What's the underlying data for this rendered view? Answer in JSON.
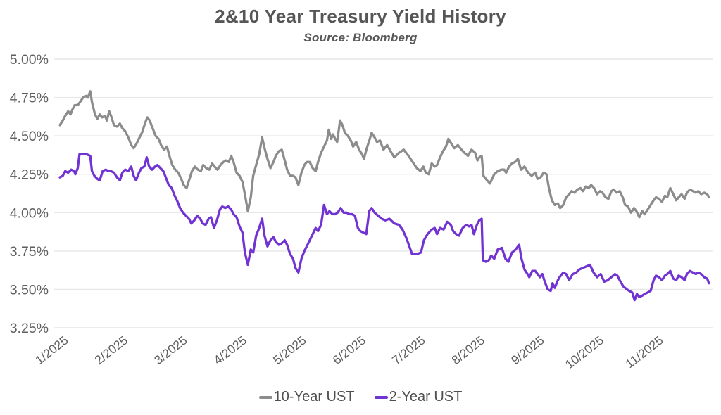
{
  "chart_data": {
    "type": "line",
    "title": "2&10 Year Treasury Yield History",
    "subtitle": "Source: Bloomberg",
    "xlabel": "",
    "ylabel": "",
    "grid": "horizontal",
    "legend_position": "bottom-center",
    "ylim": [
      3.25,
      5.0
    ],
    "xlim": [
      1.0,
      11.95
    ],
    "y_ticks": [
      {
        "value": 5.0,
        "label": "5.00%"
      },
      {
        "value": 4.75,
        "label": "4.75%"
      },
      {
        "value": 4.5,
        "label": "4.50%"
      },
      {
        "value": 4.25,
        "label": "4.25%"
      },
      {
        "value": 4.0,
        "label": "4.00%"
      },
      {
        "value": 3.75,
        "label": "3.75%"
      },
      {
        "value": 3.5,
        "label": "3.50%"
      },
      {
        "value": 3.25,
        "label": "3.25%"
      }
    ],
    "x_ticks": [
      {
        "value": 1,
        "label": "1/2025"
      },
      {
        "value": 2,
        "label": "2/2025"
      },
      {
        "value": 3,
        "label": "3/2025"
      },
      {
        "value": 4,
        "label": "4/2025"
      },
      {
        "value": 5,
        "label": "5/2025"
      },
      {
        "value": 6,
        "label": "6/2025"
      },
      {
        "value": 7,
        "label": "7/2025"
      },
      {
        "value": 8,
        "label": "8/2025"
      },
      {
        "value": 9,
        "label": "9/2025"
      },
      {
        "value": 10,
        "label": "10/2025"
      },
      {
        "value": 11,
        "label": "11/2025"
      }
    ],
    "series": [
      {
        "name": "10-Year UST",
        "color": "#8c8c8c",
        "x": [
          1.0,
          1.05,
          1.09,
          1.14,
          1.18,
          1.21,
          1.25,
          1.3,
          1.34,
          1.39,
          1.44,
          1.47,
          1.51,
          1.54,
          1.59,
          1.63,
          1.67,
          1.71,
          1.76,
          1.79,
          1.83,
          1.86,
          1.91,
          1.96,
          2.01,
          2.05,
          2.1,
          2.15,
          2.2,
          2.24,
          2.29,
          2.34,
          2.38,
          2.43,
          2.47,
          2.51,
          2.56,
          2.61,
          2.66,
          2.7,
          2.75,
          2.8,
          2.85,
          2.89,
          2.94,
          2.99,
          3.04,
          3.08,
          3.13,
          3.18,
          3.22,
          3.27,
          3.32,
          3.37,
          3.41,
          3.46,
          3.51,
          3.56,
          3.6,
          3.65,
          3.7,
          3.75,
          3.79,
          3.84,
          3.88,
          3.92,
          3.97,
          4.02,
          4.07,
          4.11,
          4.16,
          4.21,
          4.25,
          4.3,
          4.35,
          4.4,
          4.44,
          4.49,
          4.54,
          4.59,
          4.63,
          4.68,
          4.73,
          4.78,
          4.82,
          4.87,
          4.92,
          4.96,
          5.01,
          5.06,
          5.11,
          5.15,
          5.2,
          5.25,
          5.3,
          5.34,
          5.39,
          5.44,
          5.49,
          5.52,
          5.56,
          5.59,
          5.63,
          5.66,
          5.71,
          5.75,
          5.79,
          5.84,
          5.89,
          5.93,
          5.98,
          6.03,
          6.08,
          6.11,
          6.16,
          6.21,
          6.24,
          6.29,
          6.33,
          6.38,
          6.44,
          6.5,
          6.56,
          6.62,
          6.7,
          6.78,
          6.86,
          6.93,
          7.0,
          7.06,
          7.11,
          7.15,
          7.2,
          7.25,
          7.3,
          7.34,
          7.39,
          7.44,
          7.49,
          7.53,
          7.58,
          7.63,
          7.69,
          7.75,
          7.8,
          7.86,
          7.92,
          7.98,
          8.02,
          8.05,
          8.09,
          8.12,
          8.18,
          8.23,
          8.3,
          8.36,
          8.42,
          8.47,
          8.5,
          8.55,
          8.6,
          8.65,
          8.7,
          8.75,
          8.81,
          8.87,
          8.93,
          8.99,
          9.03,
          9.08,
          9.13,
          9.18,
          9.22,
          9.27,
          9.32,
          9.37,
          9.41,
          9.46,
          9.51,
          9.56,
          9.6,
          9.65,
          9.7,
          9.75,
          9.79,
          9.84,
          9.89,
          9.93,
          9.98,
          10.03,
          10.08,
          10.12,
          10.17,
          10.22,
          10.27,
          10.31,
          10.36,
          10.41,
          10.46,
          10.5,
          10.55,
          10.6,
          10.65,
          10.69,
          10.74,
          10.79,
          10.83,
          10.88,
          10.93,
          10.98,
          11.02,
          11.07,
          11.12,
          11.17,
          11.21,
          11.26,
          11.31,
          11.36,
          11.4,
          11.45,
          11.5,
          11.54,
          11.59,
          11.64,
          11.69,
          11.73,
          11.78,
          11.83,
          11.88,
          11.91
        ],
        "y": [
          4.57,
          4.6,
          4.63,
          4.66,
          4.64,
          4.67,
          4.7,
          4.7,
          4.72,
          4.75,
          4.76,
          4.75,
          4.79,
          4.72,
          4.64,
          4.61,
          4.64,
          4.62,
          4.63,
          4.6,
          4.66,
          4.63,
          4.57,
          4.56,
          4.58,
          4.55,
          4.53,
          4.49,
          4.44,
          4.42,
          4.45,
          4.49,
          4.52,
          4.58,
          4.62,
          4.6,
          4.55,
          4.5,
          4.48,
          4.44,
          4.41,
          4.43,
          4.36,
          4.31,
          4.28,
          4.26,
          4.22,
          4.18,
          4.16,
          4.22,
          4.27,
          4.3,
          4.28,
          4.27,
          4.31,
          4.29,
          4.28,
          4.32,
          4.3,
          4.28,
          4.31,
          4.33,
          4.34,
          4.33,
          4.37,
          4.33,
          4.26,
          4.24,
          4.2,
          4.12,
          4.01,
          4.1,
          4.24,
          4.31,
          4.38,
          4.49,
          4.42,
          4.35,
          4.29,
          4.33,
          4.37,
          4.4,
          4.41,
          4.34,
          4.28,
          4.24,
          4.24,
          4.23,
          4.18,
          4.26,
          4.31,
          4.33,
          4.33,
          4.29,
          4.27,
          4.33,
          4.39,
          4.43,
          4.47,
          4.54,
          4.48,
          4.51,
          4.48,
          4.46,
          4.6,
          4.57,
          4.52,
          4.5,
          4.47,
          4.43,
          4.46,
          4.41,
          4.38,
          4.35,
          4.42,
          4.48,
          4.52,
          4.49,
          4.46,
          4.47,
          4.41,
          4.44,
          4.4,
          4.36,
          4.39,
          4.41,
          4.37,
          4.33,
          4.29,
          4.27,
          4.3,
          4.26,
          4.25,
          4.32,
          4.3,
          4.31,
          4.36,
          4.4,
          4.43,
          4.48,
          4.45,
          4.42,
          4.44,
          4.41,
          4.39,
          4.37,
          4.41,
          4.39,
          4.34,
          4.36,
          4.37,
          4.24,
          4.21,
          4.19,
          4.25,
          4.27,
          4.28,
          4.28,
          4.26,
          4.3,
          4.32,
          4.33,
          4.35,
          4.28,
          4.3,
          4.26,
          4.24,
          4.26,
          4.22,
          4.23,
          4.26,
          4.25,
          4.16,
          4.08,
          4.05,
          4.06,
          4.03,
          4.05,
          4.1,
          4.12,
          4.14,
          4.13,
          4.15,
          4.16,
          4.14,
          4.17,
          4.16,
          4.18,
          4.16,
          4.12,
          4.14,
          4.13,
          4.1,
          4.09,
          4.14,
          4.15,
          4.13,
          4.14,
          4.1,
          4.05,
          4.04,
          4.0,
          4.03,
          4.01,
          3.97,
          4.01,
          3.99,
          4.02,
          4.05,
          4.08,
          4.1,
          4.09,
          4.07,
          4.11,
          4.1,
          4.16,
          4.12,
          4.08,
          4.1,
          4.12,
          4.09,
          4.13,
          4.15,
          4.14,
          4.13,
          4.14,
          4.12,
          4.13,
          4.12,
          4.1
        ]
      },
      {
        "name": "2-Year UST",
        "color": "#7134d2",
        "x": [
          1.0,
          1.05,
          1.09,
          1.14,
          1.19,
          1.24,
          1.26,
          1.3,
          1.33,
          1.39,
          1.45,
          1.51,
          1.54,
          1.58,
          1.63,
          1.67,
          1.72,
          1.77,
          1.82,
          1.86,
          1.91,
          1.96,
          2.01,
          2.05,
          2.1,
          2.15,
          2.2,
          2.24,
          2.28,
          2.33,
          2.37,
          2.42,
          2.46,
          2.5,
          2.55,
          2.6,
          2.64,
          2.69,
          2.74,
          2.79,
          2.83,
          2.88,
          2.93,
          2.98,
          3.02,
          3.07,
          3.12,
          3.17,
          3.21,
          3.26,
          3.31,
          3.36,
          3.4,
          3.45,
          3.5,
          3.54,
          3.59,
          3.64,
          3.69,
          3.73,
          3.78,
          3.83,
          3.88,
          3.92,
          3.97,
          4.02,
          4.07,
          4.11,
          4.16,
          4.21,
          4.25,
          4.3,
          4.35,
          4.4,
          4.44,
          4.49,
          4.54,
          4.59,
          4.63,
          4.68,
          4.73,
          4.78,
          4.82,
          4.87,
          4.92,
          4.96,
          5.01,
          5.06,
          5.11,
          5.15,
          5.2,
          5.25,
          5.3,
          5.34,
          5.39,
          5.44,
          5.49,
          5.53,
          5.58,
          5.63,
          5.67,
          5.72,
          5.77,
          5.82,
          5.86,
          5.91,
          5.96,
          6.01,
          6.05,
          6.1,
          6.15,
          6.2,
          6.24,
          6.29,
          6.35,
          6.41,
          6.47,
          6.54,
          6.62,
          6.7,
          6.76,
          6.83,
          6.92,
          7.0,
          7.07,
          7.12,
          7.18,
          7.25,
          7.3,
          7.34,
          7.39,
          7.45,
          7.51,
          7.57,
          7.61,
          7.66,
          7.71,
          7.77,
          7.83,
          7.88,
          7.92,
          7.96,
          8.01,
          8.05,
          8.09,
          8.11,
          8.16,
          8.21,
          8.25,
          8.3,
          8.36,
          8.43,
          8.49,
          8.54,
          8.6,
          8.66,
          8.72,
          8.76,
          8.81,
          8.86,
          8.89,
          8.94,
          8.99,
          9.03,
          9.07,
          9.11,
          9.15,
          9.2,
          9.25,
          9.28,
          9.32,
          9.37,
          9.4,
          9.46,
          9.51,
          9.56,
          9.62,
          9.68,
          9.73,
          9.79,
          9.85,
          9.91,
          9.97,
          10.03,
          10.09,
          10.15,
          10.21,
          10.27,
          10.33,
          10.37,
          10.41,
          10.47,
          10.53,
          10.57,
          10.62,
          10.66,
          10.7,
          10.74,
          10.79,
          10.83,
          10.88,
          10.93,
          10.98,
          11.02,
          11.07,
          11.12,
          11.17,
          11.21,
          11.26,
          11.31,
          11.36,
          11.4,
          11.45,
          11.5,
          11.54,
          11.59,
          11.64,
          11.69,
          11.73,
          11.78,
          11.83,
          11.88,
          11.91
        ],
        "y": [
          4.23,
          4.24,
          4.27,
          4.26,
          4.28,
          4.27,
          4.25,
          4.29,
          4.38,
          4.38,
          4.38,
          4.37,
          4.27,
          4.24,
          4.22,
          4.21,
          4.27,
          4.28,
          4.27,
          4.27,
          4.26,
          4.23,
          4.21,
          4.26,
          4.28,
          4.27,
          4.3,
          4.24,
          4.21,
          4.26,
          4.29,
          4.3,
          4.36,
          4.3,
          4.28,
          4.3,
          4.31,
          4.29,
          4.27,
          4.22,
          4.18,
          4.16,
          4.11,
          4.07,
          4.03,
          4.0,
          3.98,
          3.96,
          3.93,
          3.95,
          3.98,
          3.96,
          3.93,
          3.92,
          3.96,
          3.97,
          3.9,
          3.95,
          4.02,
          4.04,
          4.03,
          4.04,
          4.02,
          3.99,
          3.97,
          3.91,
          3.87,
          3.74,
          3.66,
          3.76,
          3.74,
          3.85,
          3.9,
          3.96,
          3.85,
          3.78,
          3.82,
          3.84,
          3.81,
          3.79,
          3.8,
          3.82,
          3.79,
          3.73,
          3.7,
          3.64,
          3.61,
          3.7,
          3.75,
          3.78,
          3.82,
          3.86,
          3.9,
          3.88,
          3.92,
          4.05,
          3.99,
          4.01,
          3.99,
          3.99,
          4.0,
          4.03,
          4.0,
          4.0,
          3.99,
          3.99,
          3.98,
          3.9,
          3.88,
          3.87,
          3.86,
          4.01,
          4.03,
          4.0,
          3.98,
          3.96,
          3.95,
          3.96,
          3.93,
          3.92,
          3.89,
          3.83,
          3.73,
          3.73,
          3.74,
          3.82,
          3.86,
          3.89,
          3.9,
          3.86,
          3.9,
          3.89,
          3.94,
          3.92,
          3.88,
          3.86,
          3.85,
          3.9,
          3.92,
          3.91,
          3.92,
          3.86,
          3.92,
          3.95,
          3.96,
          3.69,
          3.68,
          3.69,
          3.72,
          3.7,
          3.76,
          3.77,
          3.7,
          3.68,
          3.74,
          3.76,
          3.79,
          3.7,
          3.63,
          3.6,
          3.58,
          3.62,
          3.62,
          3.6,
          3.58,
          3.6,
          3.55,
          3.5,
          3.49,
          3.54,
          3.51,
          3.56,
          3.58,
          3.61,
          3.6,
          3.56,
          3.6,
          3.61,
          3.63,
          3.64,
          3.65,
          3.66,
          3.61,
          3.58,
          3.6,
          3.55,
          3.56,
          3.58,
          3.6,
          3.59,
          3.56,
          3.52,
          3.5,
          3.49,
          3.48,
          3.43,
          3.47,
          3.45,
          3.46,
          3.47,
          3.48,
          3.49,
          3.56,
          3.59,
          3.58,
          3.56,
          3.59,
          3.6,
          3.62,
          3.57,
          3.56,
          3.59,
          3.58,
          3.56,
          3.6,
          3.62,
          3.61,
          3.6,
          3.61,
          3.6,
          3.58,
          3.57,
          3.54
        ]
      }
    ]
  }
}
